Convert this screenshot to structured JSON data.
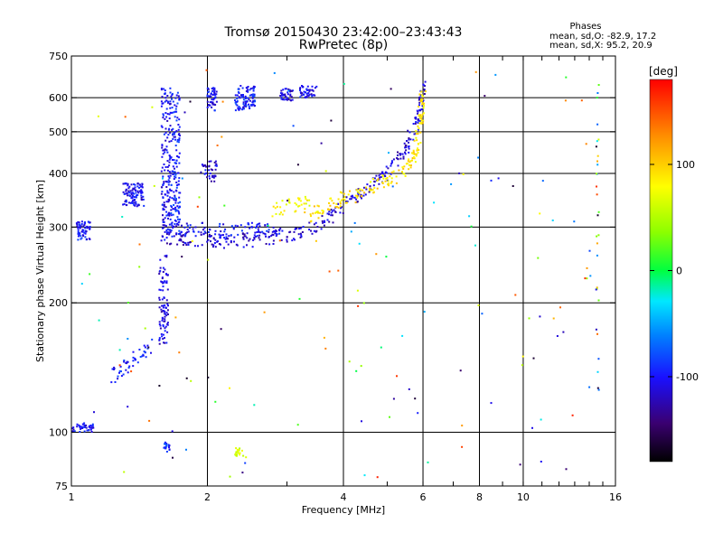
{
  "chart_data": {
    "type": "scatter",
    "title": "Tromsø 20150430 23:42:00–23:43:43",
    "subtitle": "RwPretec (8p)",
    "xlabel": "Frequency [MHz]",
    "ylabel": "Stationary phase Virtual Height [km]",
    "x_scale": "log",
    "y_scale": "log",
    "xlim": [
      1,
      16
    ],
    "ylim": [
      75,
      750
    ],
    "x_ticks": [
      1,
      2,
      4,
      6,
      8,
      10,
      16
    ],
    "x_tick_labels": [
      "1",
      "2",
      "4",
      "6",
      "8",
      "10",
      "16"
    ],
    "x_gridlines": [
      2,
      4,
      6,
      8,
      10
    ],
    "y_ticks": [
      75,
      100,
      200,
      300,
      400,
      500,
      600,
      750
    ],
    "y_tick_labels": [
      "75",
      "100",
      "200",
      "300",
      "400",
      "500",
      "600",
      "750"
    ],
    "y_gridlines": [
      100,
      200,
      300,
      400,
      500,
      600
    ],
    "grid": true,
    "stats": {
      "heading": "Phases",
      "line_o": "mean, sd,O: -82.9, 17.2",
      "line_x": "mean, sd,X:  95.2, 20.9"
    },
    "colorbar": {
      "label": "[deg]",
      "ticks": [
        "100",
        "0",
        "-100"
      ],
      "tick_values": [
        100,
        0,
        -100
      ],
      "range": [
        -180,
        180
      ],
      "placement": "right"
    },
    "traces": [
      {
        "mode": "line",
        "phase": -115,
        "points": [
          [
            1.6,
            285
          ],
          [
            1.75,
            282
          ],
          [
            1.9,
            280
          ],
          [
            2.1,
            278
          ],
          [
            2.3,
            278
          ],
          [
            2.5,
            280
          ],
          [
            2.8,
            284
          ],
          [
            3.1,
            290
          ],
          [
            3.4,
            300
          ],
          [
            3.7,
            315
          ],
          [
            4.0,
            335
          ],
          [
            4.4,
            360
          ],
          [
            4.8,
            385
          ],
          [
            5.2,
            420
          ],
          [
            5.5,
            460
          ],
          [
            5.8,
            520
          ],
          [
            5.95,
            580
          ],
          [
            6.0,
            640
          ]
        ]
      },
      {
        "mode": "line",
        "phase": -100,
        "points": [
          [
            1.6,
            300
          ],
          [
            1.8,
            298
          ],
          [
            2.0,
            295
          ],
          [
            2.3,
            294
          ],
          [
            2.6,
            296
          ],
          [
            2.9,
            300
          ]
        ]
      },
      {
        "mode": "line",
        "phase": 90,
        "points": [
          [
            3.3,
            315
          ],
          [
            3.6,
            330
          ],
          [
            3.9,
            345
          ],
          [
            4.2,
            355
          ],
          [
            4.6,
            370
          ],
          [
            5.0,
            385
          ],
          [
            5.4,
            400
          ],
          [
            5.7,
            430
          ],
          [
            5.85,
            480
          ],
          [
            5.95,
            560
          ],
          [
            6.0,
            620
          ]
        ]
      },
      {
        "mode": "line",
        "phase": 80,
        "points": [
          [
            2.8,
            330
          ],
          [
            3.0,
            335
          ],
          [
            3.2,
            340
          ],
          [
            3.4,
            345
          ]
        ]
      },
      {
        "mode": "vertical",
        "phase": -105,
        "x": 1.62,
        "y1": 280,
        "y2": 640
      },
      {
        "mode": "vertical",
        "phase": -95,
        "x": 1.7,
        "y1": 285,
        "y2": 620
      },
      {
        "mode": "vertical",
        "phase": -110,
        "x": 1.6,
        "y1": 160,
        "y2": 260
      },
      {
        "mode": "vertical",
        "phase": -115,
        "x": 2.05,
        "y1": 380,
        "y2": 430
      },
      {
        "mode": "vertical",
        "phase": -110,
        "x": 1.98,
        "y1": 390,
        "y2": 420
      },
      {
        "mode": "cluster",
        "phase": -100,
        "x1": 2.0,
        "x2": 2.1,
        "y1": 560,
        "y2": 640
      },
      {
        "mode": "cluster",
        "phase": -95,
        "x1": 2.3,
        "x2": 2.55,
        "y1": 560,
        "y2": 640
      },
      {
        "mode": "cluster",
        "phase": -110,
        "x1": 2.9,
        "x2": 3.1,
        "y1": 590,
        "y2": 630
      },
      {
        "mode": "cluster",
        "phase": -105,
        "x1": 3.2,
        "x2": 3.5,
        "y1": 600,
        "y2": 640
      },
      {
        "mode": "line",
        "phase": -95,
        "points": [
          [
            1.22,
            135
          ],
          [
            1.3,
            140
          ],
          [
            1.38,
            148
          ],
          [
            1.45,
            155
          ],
          [
            1.5,
            160
          ]
        ]
      },
      {
        "mode": "cluster",
        "phase": -100,
        "x1": 1.0,
        "x2": 1.12,
        "y1": 100,
        "y2": 105
      },
      {
        "mode": "cluster",
        "phase": 60,
        "x1": 2.3,
        "x2": 2.4,
        "y1": 88,
        "y2": 92
      },
      {
        "mode": "cluster",
        "phase": -90,
        "x1": 1.6,
        "x2": 1.65,
        "y1": 90,
        "y2": 95
      },
      {
        "mode": "cluster",
        "phase": -105,
        "x1": 1.3,
        "x2": 1.45,
        "y1": 335,
        "y2": 380
      },
      {
        "mode": "cluster",
        "phase": -100,
        "x1": 1.02,
        "x2": 1.1,
        "y1": 280,
        "y2": 310
      },
      {
        "mode": "scatter",
        "phase": 0,
        "x1": 1.0,
        "x2": 14.6,
        "y1": 78,
        "y2": 700
      }
    ]
  }
}
